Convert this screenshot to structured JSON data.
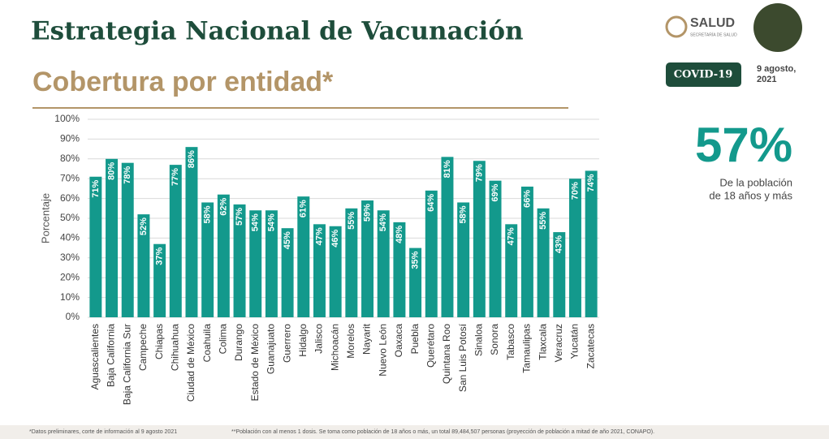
{
  "header": {
    "title": "Estrategia Nacional de Vacunación",
    "subtitle": "Cobertura por entidad*",
    "logo": "SALUD",
    "logo_sub": "SECRETARÍA DE SALUD",
    "badge": "COVID-19",
    "date_lines": [
      "9 agosto,",
      "2021"
    ]
  },
  "highlight": {
    "value": "57%",
    "caption_lines": [
      "De la población",
      "de 18 años y más"
    ]
  },
  "footnotes": [
    "*Datos preliminares, corte de información al 9 agosto 2021",
    "**Población con al menos 1 dosis. Se toma como población de 18 años o más, un total 89,484,507 personas (proyección de población a mitad de año 2021, CONAPO)."
  ],
  "chart_data": {
    "type": "bar",
    "y_label": "Porcentaje",
    "color": "#13998c",
    "grid": true,
    "categories": [
      "Aguascalientes",
      "Baja California",
      "Baja California Sur",
      "Campeche",
      "Chiapas",
      "Chihuahua",
      "Ciudad de México",
      "Coahuila",
      "Colima",
      "Durango",
      "Estado de México",
      "Guanajuato",
      "Guerrero",
      "Hidalgo",
      "Jalisco",
      "Michoacán",
      "Morelos",
      "Nayarit",
      "Nuevo León",
      "Oaxaca",
      "Puebla",
      "Querétaro",
      "Quintana Roo",
      "San Luis Potosí",
      "Sinaloa",
      "Sonora",
      "Tabasco",
      "Tamaulipas",
      "Tlaxcala",
      "Veracruz",
      "Yucatán",
      "Zacatecas"
    ],
    "values": [
      71,
      80,
      78,
      52,
      37,
      77,
      86,
      58,
      62,
      57,
      54,
      54,
      45,
      61,
      47,
      46,
      55,
      59,
      54,
      48,
      35,
      64,
      81,
      58,
      79,
      69,
      47,
      66,
      55,
      43,
      70,
      74
    ],
    "value_labels": [
      "71%",
      "80%",
      "78%",
      "52%",
      "37%",
      "77%",
      "86%",
      "58%",
      "62%",
      "57%",
      "54%",
      "54%",
      "45%",
      "61%",
      "47%",
      "46%",
      "55%",
      "59%",
      "54%",
      "48%",
      "35%",
      "64%",
      "81%",
      "58%",
      "79%",
      "69%",
      "47%",
      "66%",
      "55%",
      "43%",
      "70%",
      "74%"
    ],
    "ylim": [
      0,
      100
    ],
    "yticks": [
      {
        "value": 0,
        "label": "0%"
      },
      {
        "value": 10,
        "label": "10%"
      },
      {
        "value": 20,
        "label": "20%"
      },
      {
        "value": 30,
        "label": "30%"
      },
      {
        "value": 40,
        "label": "40%"
      },
      {
        "value": 50,
        "label": "50%"
      },
      {
        "value": 60,
        "label": "60%"
      },
      {
        "value": 70,
        "label": "70%"
      },
      {
        "value": 80,
        "label": "80%"
      },
      {
        "value": 90,
        "label": "90%"
      },
      {
        "value": 100,
        "label": "100%"
      }
    ]
  }
}
